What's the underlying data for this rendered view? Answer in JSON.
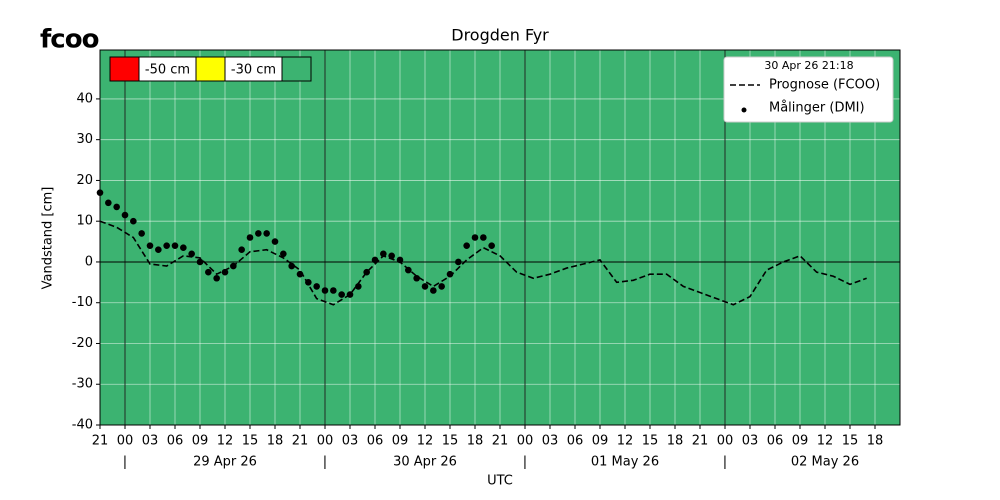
{
  "logo": "fcoo",
  "chart_data": {
    "type": "line",
    "title": "Drogden Fyr",
    "ylabel": "Vandstand [cm]",
    "xlabel": "UTC",
    "background": "#3cb371",
    "grid": true,
    "legend_title": "30 Apr 26 21:18",
    "legend_position": "upper right",
    "thresholds": [
      {
        "color": "#ff0000",
        "label": "-50 cm"
      },
      {
        "color": "#ffff00",
        "label": "-30 cm"
      },
      {
        "color": "#3cb371"
      }
    ],
    "xlim": [
      "2026-04-28T21:00",
      "2026-05-02T21:00"
    ],
    "ylim": [
      -40,
      52
    ],
    "yticks": [
      -40,
      -30,
      -20,
      -10,
      0,
      10,
      20,
      30,
      40
    ],
    "xticks": [
      {
        "value": "2026-04-28T21:00",
        "label": "21"
      },
      {
        "value": "2026-04-29T00:00",
        "label": "00"
      },
      {
        "value": "2026-04-29T03:00",
        "label": "03"
      },
      {
        "value": "2026-04-29T06:00",
        "label": "06"
      },
      {
        "value": "2026-04-29T09:00",
        "label": "09"
      },
      {
        "value": "2026-04-29T12:00",
        "label": "12"
      },
      {
        "value": "2026-04-29T15:00",
        "label": "15"
      },
      {
        "value": "2026-04-29T18:00",
        "label": "18"
      },
      {
        "value": "2026-04-29T21:00",
        "label": "21"
      },
      {
        "value": "2026-04-30T00:00",
        "label": "00"
      },
      {
        "value": "2026-04-30T03:00",
        "label": "03"
      },
      {
        "value": "2026-04-30T06:00",
        "label": "06"
      },
      {
        "value": "2026-04-30T09:00",
        "label": "09"
      },
      {
        "value": "2026-04-30T12:00",
        "label": "12"
      },
      {
        "value": "2026-04-30T15:00",
        "label": "15"
      },
      {
        "value": "2026-04-30T18:00",
        "label": "18"
      },
      {
        "value": "2026-04-30T21:00",
        "label": "21"
      },
      {
        "value": "2026-05-01T00:00",
        "label": "00"
      },
      {
        "value": "2026-05-01T03:00",
        "label": "03"
      },
      {
        "value": "2026-05-01T06:00",
        "label": "06"
      },
      {
        "value": "2026-05-01T09:00",
        "label": "09"
      },
      {
        "value": "2026-05-01T12:00",
        "label": "12"
      },
      {
        "value": "2026-05-01T15:00",
        "label": "15"
      },
      {
        "value": "2026-05-01T18:00",
        "label": "18"
      },
      {
        "value": "2026-05-01T21:00",
        "label": "21"
      },
      {
        "value": "2026-05-02T00:00",
        "label": "00"
      },
      {
        "value": "2026-05-02T03:00",
        "label": "03"
      },
      {
        "value": "2026-05-02T06:00",
        "label": "06"
      },
      {
        "value": "2026-05-02T09:00",
        "label": "09"
      },
      {
        "value": "2026-05-02T12:00",
        "label": "12"
      },
      {
        "value": "2026-05-02T15:00",
        "label": "15"
      },
      {
        "value": "2026-05-02T18:00",
        "label": "18"
      }
    ],
    "day_separators": [
      {
        "value": "2026-04-29T00:00",
        "label": "|"
      },
      {
        "value": "2026-04-30T00:00",
        "label": "|"
      },
      {
        "value": "2026-05-01T00:00",
        "label": "|"
      },
      {
        "value": "2026-05-02T00:00",
        "label": "|"
      }
    ],
    "day_labels": [
      {
        "value": "2026-04-29T12:00",
        "label": "29 Apr 26"
      },
      {
        "value": "2026-04-30T12:00",
        "label": "30 Apr 26"
      },
      {
        "value": "2026-05-01T12:00",
        "label": "01 May 26"
      },
      {
        "value": "2026-05-02T12:00",
        "label": "02 May 26"
      }
    ],
    "series": [
      {
        "name": "Prognose (FCOO)",
        "color": "#000000",
        "style": "dashed",
        "x": [
          "2026-04-28T21:00",
          "2026-04-28T23:00",
          "2026-04-29T01:00",
          "2026-04-29T03:00",
          "2026-04-29T05:00",
          "2026-04-29T07:00",
          "2026-04-29T09:00",
          "2026-04-29T11:00",
          "2026-04-29T13:00",
          "2026-04-29T15:00",
          "2026-04-29T17:00",
          "2026-04-29T19:00",
          "2026-04-29T21:00",
          "2026-04-29T23:00",
          "2026-04-30T01:00",
          "2026-04-30T03:00",
          "2026-04-30T05:00",
          "2026-04-30T07:00",
          "2026-04-30T09:00",
          "2026-04-30T11:00",
          "2026-04-30T13:00",
          "2026-04-30T15:00",
          "2026-04-30T17:00",
          "2026-04-30T19:00",
          "2026-04-30T21:00",
          "2026-04-30T23:00",
          "2026-05-01T01:00",
          "2026-05-01T03:00",
          "2026-05-01T05:00",
          "2026-05-01T07:00",
          "2026-05-01T09:00",
          "2026-05-01T11:00",
          "2026-05-01T13:00",
          "2026-05-01T15:00",
          "2026-05-01T17:00",
          "2026-05-01T19:00",
          "2026-05-01T21:00",
          "2026-05-01T23:00",
          "2026-05-02T01:00",
          "2026-05-02T03:00",
          "2026-05-02T05:00",
          "2026-05-02T07:00",
          "2026-05-02T09:00",
          "2026-05-02T11:00",
          "2026-05-02T13:00",
          "2026-05-02T15:00",
          "2026-05-02T17:00"
        ],
        "values": [
          10,
          8.5,
          6,
          -0.5,
          -1,
          1.5,
          1,
          -3,
          -1,
          2.5,
          3,
          1,
          -2,
          -9,
          -10.5,
          -8,
          -2.5,
          1.5,
          0,
          -3.5,
          -6,
          -3.5,
          0.5,
          3.5,
          1.5,
          -2.5,
          -4,
          -3,
          -1.5,
          -0.5,
          0.5,
          -5,
          -4.5,
          -3,
          -3,
          -6,
          -7.5,
          -9,
          -10.5,
          -8.5,
          -2,
          0,
          1.5,
          -2.5,
          -3.5,
          -5.5,
          -4
        ]
      },
      {
        "name": "Målinger (DMI)",
        "color": "#000000",
        "style": "markers",
        "x": [
          "2026-04-28T21:00",
          "2026-04-28T22:00",
          "2026-04-28T23:00",
          "2026-04-29T00:00",
          "2026-04-29T01:00",
          "2026-04-29T02:00",
          "2026-04-29T03:00",
          "2026-04-29T04:00",
          "2026-04-29T05:00",
          "2026-04-29T06:00",
          "2026-04-29T07:00",
          "2026-04-29T08:00",
          "2026-04-29T09:00",
          "2026-04-29T10:00",
          "2026-04-29T11:00",
          "2026-04-29T12:00",
          "2026-04-29T13:00",
          "2026-04-29T14:00",
          "2026-04-29T15:00",
          "2026-04-29T16:00",
          "2026-04-29T17:00",
          "2026-04-29T18:00",
          "2026-04-29T19:00",
          "2026-04-29T20:00",
          "2026-04-29T21:00",
          "2026-04-29T22:00",
          "2026-04-29T23:00",
          "2026-04-30T00:00",
          "2026-04-30T01:00",
          "2026-04-30T02:00",
          "2026-04-30T03:00",
          "2026-04-30T04:00",
          "2026-04-30T05:00",
          "2026-04-30T06:00",
          "2026-04-30T07:00",
          "2026-04-30T08:00",
          "2026-04-30T09:00",
          "2026-04-30T10:00",
          "2026-04-30T11:00",
          "2026-04-30T12:00",
          "2026-04-30T13:00",
          "2026-04-30T14:00",
          "2026-04-30T15:00",
          "2026-04-30T16:00",
          "2026-04-30T17:00",
          "2026-04-30T18:00",
          "2026-04-30T19:00",
          "2026-04-30T20:00"
        ],
        "values": [
          17,
          14.5,
          13.5,
          11.5,
          10,
          7,
          4,
          3,
          4,
          4,
          3.5,
          2,
          0,
          -2.5,
          -4,
          -2.5,
          -1,
          3,
          6,
          7,
          7,
          5,
          2,
          -1,
          -3,
          -5,
          -6,
          -7,
          -7,
          -8,
          -8,
          -6,
          -2.5,
          0.5,
          2,
          1.5,
          0.5,
          -2,
          -4,
          -6,
          -7,
          -6,
          -3,
          0,
          4,
          6,
          6,
          4
        ]
      }
    ]
  }
}
